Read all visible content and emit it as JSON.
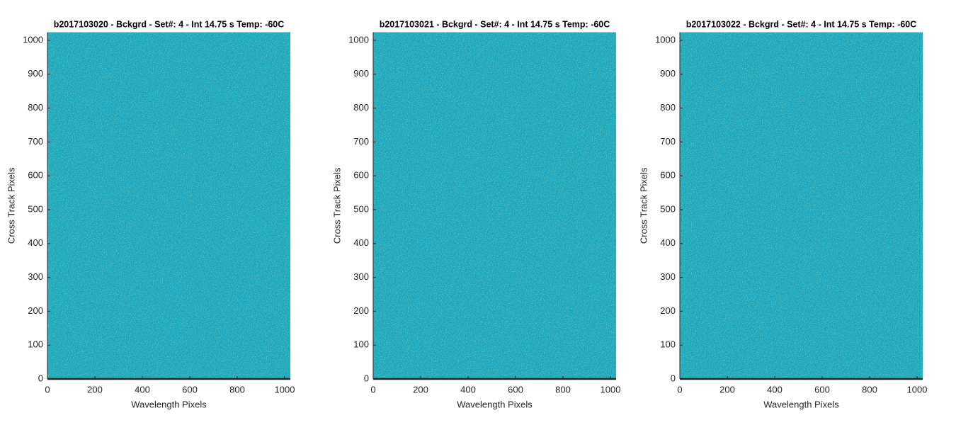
{
  "chart_data": [
    {
      "type": "image",
      "title": "b2017103020 - Bckgrd - Set#: 4 - Int 14.75 s Temp: -60C",
      "xlabel": "Wavelength Pixels",
      "ylabel": "Cross Track Pixels",
      "color": "#1ba7b9",
      "xlim": [
        0,
        1024
      ],
      "ylim": [
        0,
        1024
      ],
      "xticks": [
        0,
        200,
        400,
        600,
        800,
        1000
      ],
      "yticks": [
        0,
        100,
        200,
        300,
        400,
        500,
        600,
        700,
        800,
        900,
        1000
      ]
    },
    {
      "type": "image",
      "title": "b2017103021 - Bckgrd - Set#: 4 - Int 14.75 s Temp: -60C",
      "xlabel": "Wavelength Pixels",
      "ylabel": "Cross Track Pixels",
      "color": "#1ba7b9",
      "xlim": [
        0,
        1024
      ],
      "ylim": [
        0,
        1024
      ],
      "xticks": [
        0,
        200,
        400,
        600,
        800,
        1000
      ],
      "yticks": [
        0,
        100,
        200,
        300,
        400,
        500,
        600,
        700,
        800,
        900,
        1000
      ]
    },
    {
      "type": "image",
      "title": "b2017103022 - Bckgrd - Set#: 4 - Int 14.75 s Temp: -60C",
      "xlabel": "Wavelength Pixels",
      "ylabel": "Cross Track Pixels",
      "color": "#1ba7b9",
      "xlim": [
        0,
        1024
      ],
      "ylim": [
        0,
        1024
      ],
      "xticks": [
        0,
        200,
        400,
        600,
        800,
        1000
      ],
      "yticks": [
        0,
        100,
        200,
        300,
        400,
        500,
        600,
        700,
        800,
        900,
        1000
      ]
    }
  ]
}
